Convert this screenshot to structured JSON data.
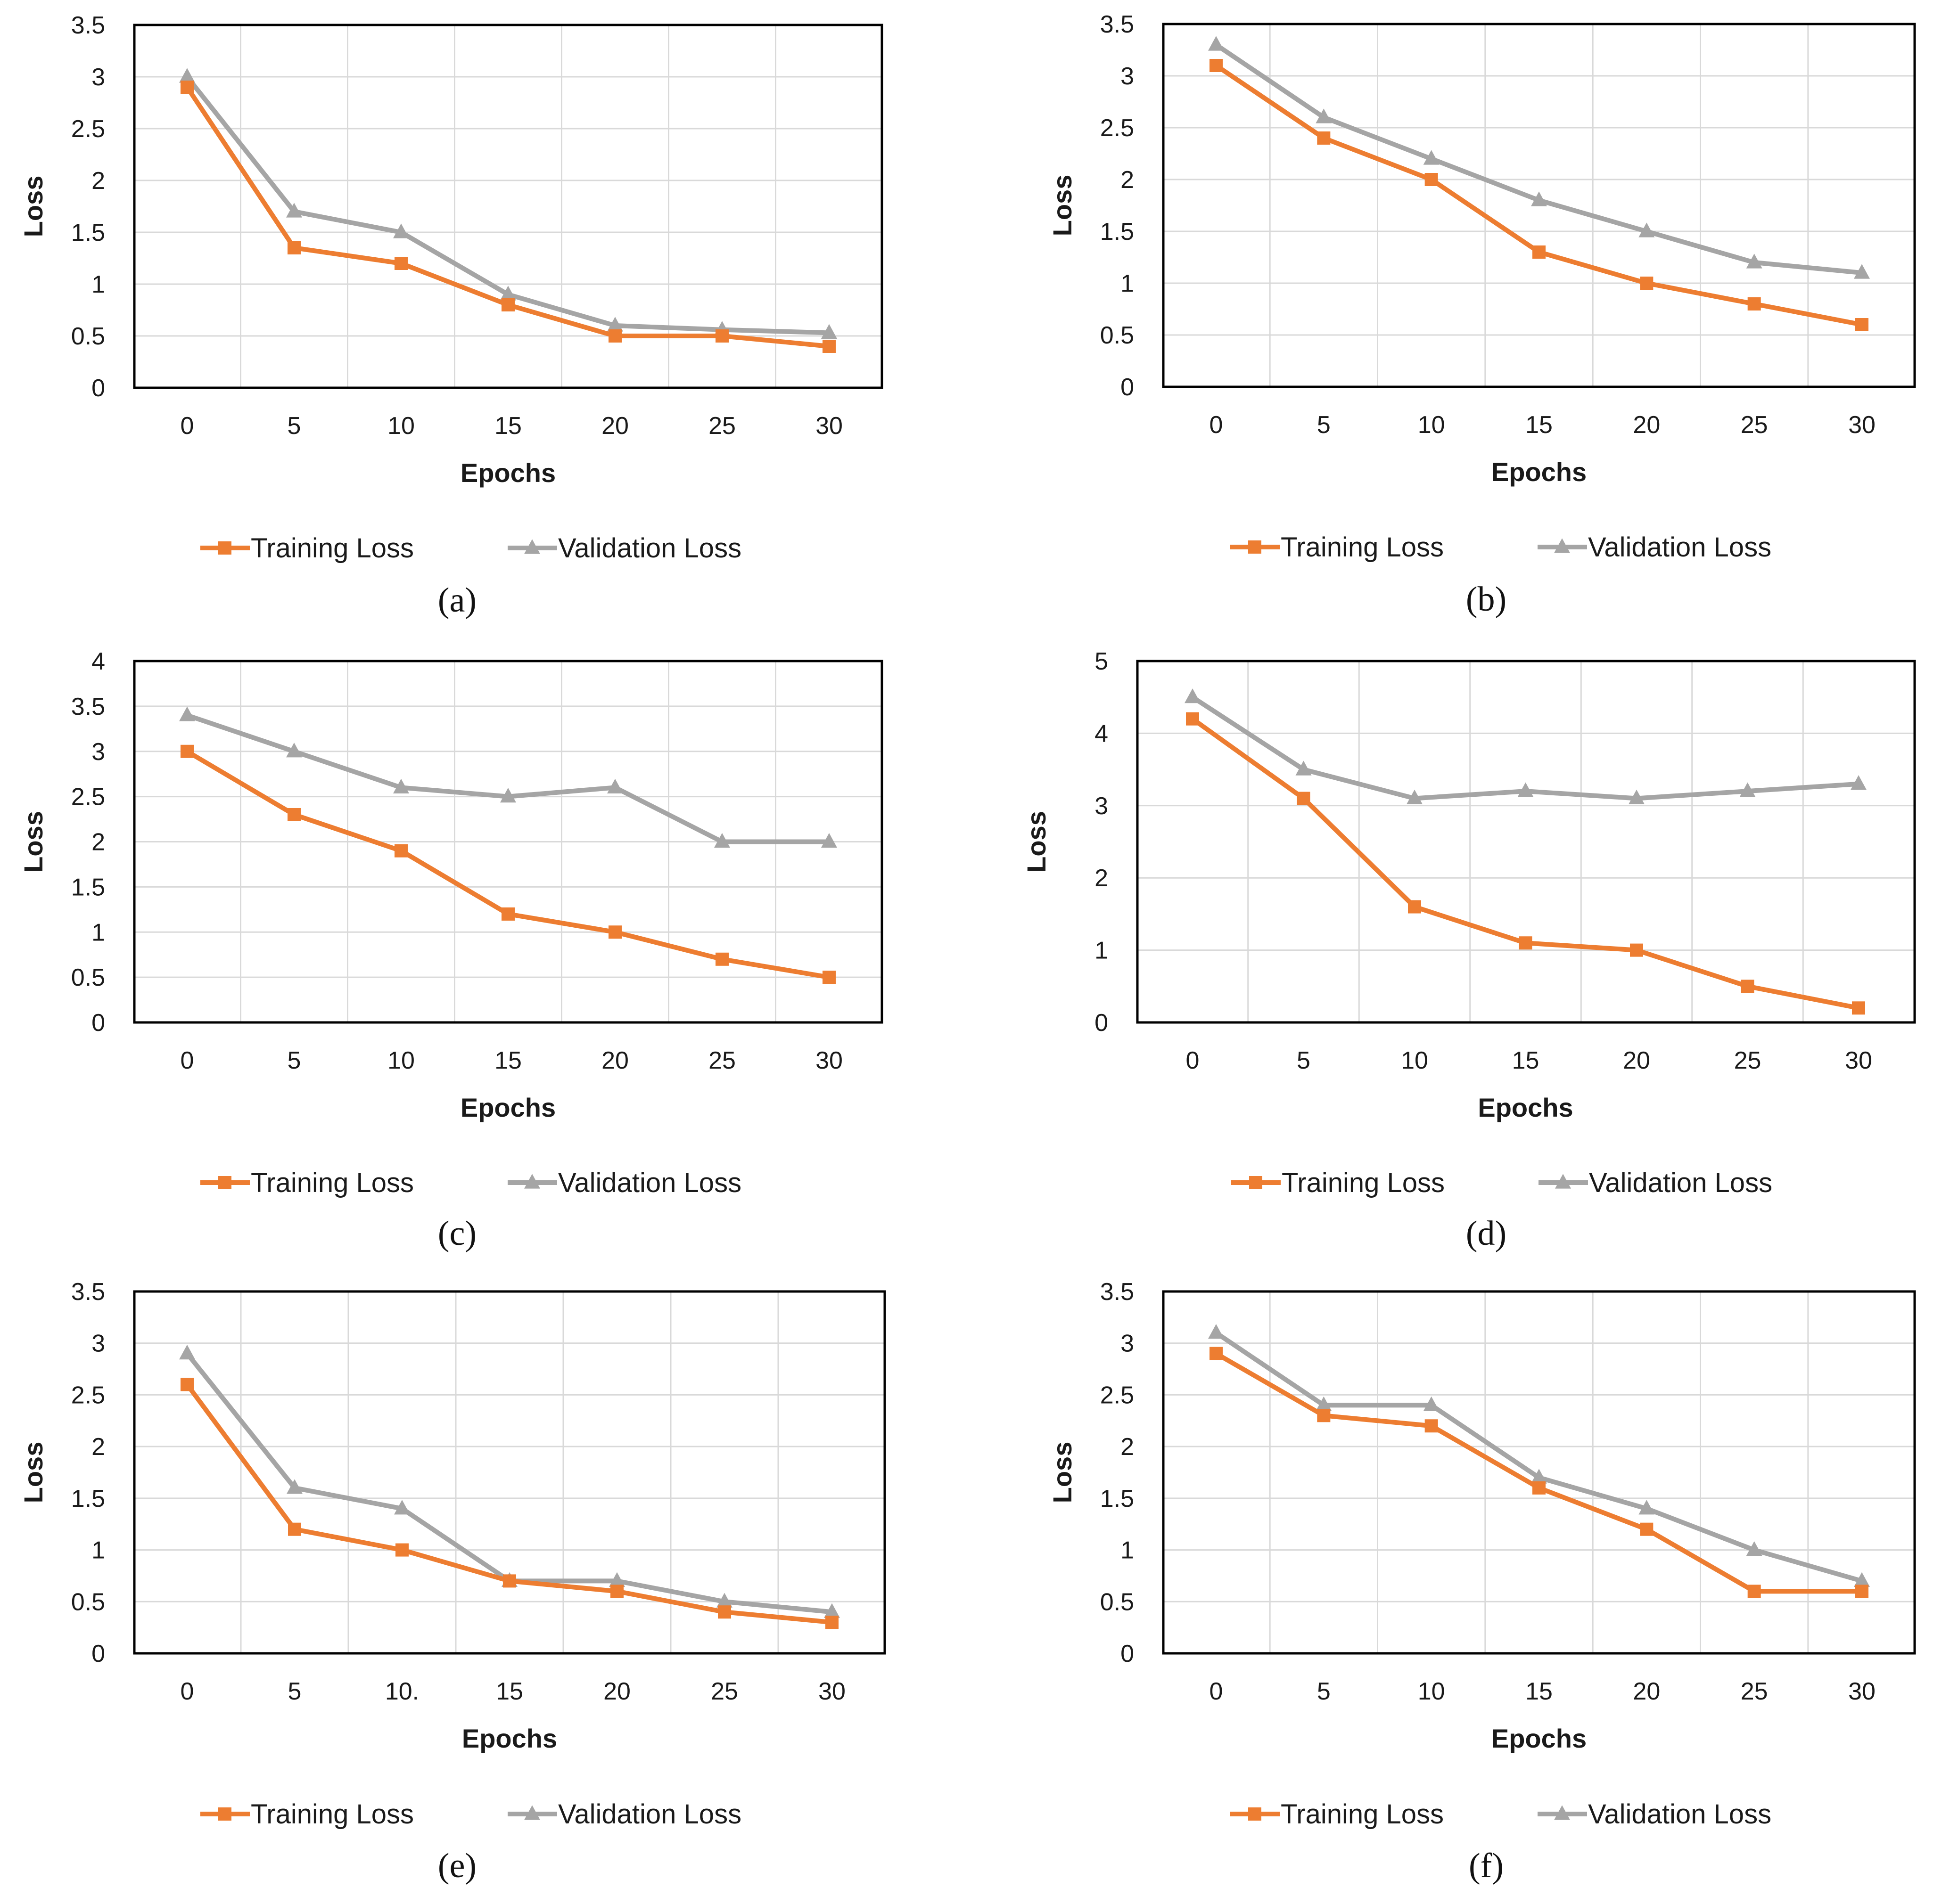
{
  "figure": {
    "colors": {
      "training": "#ED7D31",
      "validation": "#A5A5A5",
      "gridline": "#D9D9D9",
      "plot_border": "#000000",
      "text": "#1a1a1a"
    },
    "legend_markers": {
      "training": "square",
      "validation": "triangle"
    }
  },
  "chart_data": [
    {
      "type": "line",
      "caption": {
        "open": "(",
        "letter": "a",
        "close": ")"
      },
      "x": [
        0,
        5,
        10,
        15,
        20,
        25,
        30
      ],
      "x_tick_labels": [
        "0",
        "5",
        "10",
        "15",
        "20",
        "25",
        "30"
      ],
      "y_tick_labels": [
        "0",
        "0.5",
        "1",
        "1.5",
        "2",
        "2.5",
        "3",
        "3.5"
      ],
      "ylim": [
        0,
        3.5
      ],
      "xlabel": "Epochs",
      "ylabel": "Loss",
      "grid": true,
      "legend_position": "bottom",
      "series": [
        {
          "name": "Training Loss",
          "marker": "square",
          "values": [
            2.9,
            1.35,
            1.2,
            0.8,
            0.5,
            0.5,
            0.4
          ]
        },
        {
          "name": "Validation Loss",
          "marker": "triangle",
          "values": [
            3.0,
            1.7,
            1.5,
            0.9,
            0.6,
            0.56,
            0.53
          ]
        }
      ]
    },
    {
      "type": "line",
      "caption": {
        "open": "(",
        "letter": "b",
        "close": ")"
      },
      "x": [
        0,
        5,
        10,
        15,
        20,
        25,
        30
      ],
      "x_tick_labels": [
        "0",
        "5",
        "10",
        "15",
        "20",
        "25",
        "30"
      ],
      "y_tick_labels": [
        "0",
        "0.5",
        "1",
        "1.5",
        "2",
        "2.5",
        "3",
        "3.5"
      ],
      "ylim": [
        0,
        3.5
      ],
      "xlabel": "Epochs",
      "ylabel": "Loss",
      "grid": true,
      "legend_position": "bottom",
      "series": [
        {
          "name": "Training Loss",
          "marker": "square",
          "values": [
            3.1,
            2.4,
            2.0,
            1.3,
            1.0,
            0.8,
            0.6
          ]
        },
        {
          "name": "Validation Loss",
          "marker": "triangle",
          "values": [
            3.3,
            2.6,
            2.2,
            1.8,
            1.5,
            1.2,
            1.1
          ]
        }
      ]
    },
    {
      "type": "line",
      "caption": {
        "open": "(",
        "letter": "c",
        "close": ")"
      },
      "x": [
        0,
        5,
        10,
        15,
        20,
        25,
        30
      ],
      "x_tick_labels": [
        "0",
        "5",
        "10",
        "15",
        "20",
        "25",
        "30"
      ],
      "y_tick_labels": [
        "0",
        "0.5",
        "1",
        "1.5",
        "2",
        "2.5",
        "3",
        "3.5",
        "4"
      ],
      "ylim": [
        0,
        4
      ],
      "xlabel": "Epochs",
      "ylabel": "Loss",
      "grid": true,
      "legend_position": "bottom",
      "series": [
        {
          "name": "Training Loss",
          "marker": "square",
          "values": [
            3.0,
            2.3,
            1.9,
            1.2,
            1.0,
            0.7,
            0.5
          ]
        },
        {
          "name": "Validation Loss",
          "marker": "triangle",
          "values": [
            3.4,
            3.0,
            2.6,
            2.5,
            2.6,
            2.0,
            2.0
          ]
        }
      ]
    },
    {
      "type": "line",
      "caption": {
        "open": "(",
        "letter": "d",
        "close": ")"
      },
      "x": [
        0,
        5,
        10,
        15,
        20,
        25,
        30
      ],
      "x_tick_labels": [
        "0",
        "5",
        "10",
        "15",
        "20",
        "25",
        "30"
      ],
      "y_tick_labels": [
        "0",
        "1",
        "2",
        "3",
        "4",
        "5"
      ],
      "ylim": [
        0,
        5
      ],
      "xlabel": "Epochs",
      "ylabel": "Loss",
      "grid": true,
      "legend_position": "bottom",
      "series": [
        {
          "name": "Training Loss",
          "marker": "square",
          "values": [
            4.2,
            3.1,
            1.6,
            1.1,
            1.0,
            0.5,
            0.2
          ]
        },
        {
          "name": "Validation Loss",
          "marker": "triangle",
          "values": [
            4.5,
            3.5,
            3.1,
            3.2,
            3.1,
            3.2,
            3.3
          ]
        }
      ]
    },
    {
      "type": "line",
      "caption": {
        "open": "(",
        "letter": "e",
        "close": ")"
      },
      "x": [
        0,
        5,
        10,
        15,
        20,
        25,
        30
      ],
      "x_tick_labels": [
        "0",
        "5",
        "10.",
        "15",
        "20",
        "25",
        "30"
      ],
      "y_tick_labels": [
        "0",
        "0.5",
        "1",
        "1.5",
        "2",
        "2.5",
        "3",
        "3.5"
      ],
      "ylim": [
        0,
        3.5
      ],
      "xlabel": "Epochs",
      "ylabel": "Loss",
      "grid": true,
      "legend_position": "bottom",
      "series": [
        {
          "name": "Training Loss",
          "marker": "square",
          "values": [
            2.6,
            1.2,
            1.0,
            0.7,
            0.6,
            0.4,
            0.3
          ]
        },
        {
          "name": "Validation Loss",
          "marker": "triangle",
          "values": [
            2.9,
            1.6,
            1.4,
            0.7,
            0.7,
            0.5,
            0.4
          ]
        }
      ]
    },
    {
      "type": "line",
      "caption": {
        "open": "(",
        "letter": "f",
        "close": ")"
      },
      "x": [
        0,
        5,
        10,
        15,
        20,
        25,
        30
      ],
      "x_tick_labels": [
        "0",
        "5",
        "10",
        "15",
        "20",
        "25",
        "30"
      ],
      "y_tick_labels": [
        "0",
        "0.5",
        "1",
        "1.5",
        "2",
        "2.5",
        "3",
        "3.5"
      ],
      "ylim": [
        0,
        3.5
      ],
      "xlabel": "Epochs",
      "ylabel": "Loss",
      "grid": true,
      "legend_position": "bottom",
      "series": [
        {
          "name": "Training Loss",
          "marker": "square",
          "values": [
            2.9,
            2.3,
            2.2,
            1.6,
            1.2,
            0.6,
            0.6
          ]
        },
        {
          "name": "Validation Loss",
          "marker": "triangle",
          "values": [
            3.1,
            2.4,
            2.4,
            1.7,
            1.4,
            1.0,
            0.7
          ]
        }
      ]
    }
  ]
}
